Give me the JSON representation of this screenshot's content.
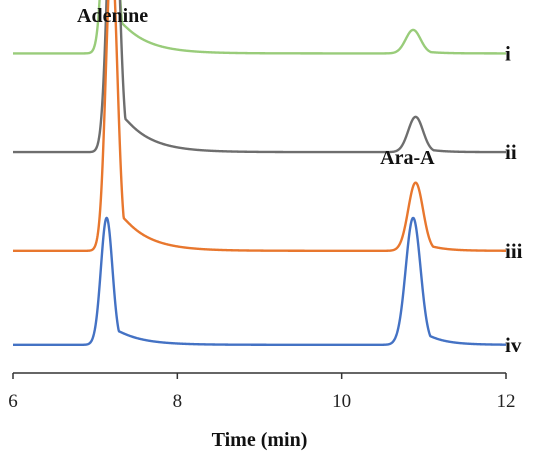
{
  "chart_data": {
    "type": "line",
    "title": "",
    "xlabel": "Time (min)",
    "ylabel": "",
    "xlim": [
      6,
      12
    ],
    "x_ticks": [
      6,
      8,
      10,
      12
    ],
    "grid": false,
    "annotations": [
      {
        "text": "Adenine",
        "x": 7.2
      },
      {
        "text": "Ara-A",
        "x": 10.8
      }
    ],
    "series": [
      {
        "name": "i",
        "color": "#99cc7a",
        "baseline": 0.68,
        "peaks": [
          {
            "rt": 7.18,
            "height": 0.58,
            "width": 0.07,
            "tail": 0.32
          },
          {
            "rt": 10.87,
            "height": 0.05,
            "width": 0.09,
            "tail": 0.18
          }
        ]
      },
      {
        "name": "ii",
        "color": "#6e6e6e",
        "baseline": 0.47,
        "peaks": [
          {
            "rt": 7.22,
            "height": 0.64,
            "width": 0.07,
            "tail": 0.32
          },
          {
            "rt": 10.9,
            "height": 0.075,
            "width": 0.09,
            "tail": 0.18
          }
        ]
      },
      {
        "name": "iii",
        "color": "#e8772e",
        "baseline": 0.26,
        "peaks": [
          {
            "rt": 7.2,
            "height": 0.63,
            "width": 0.07,
            "tail": 0.32
          },
          {
            "rt": 10.9,
            "height": 0.145,
            "width": 0.09,
            "tail": 0.2
          }
        ]
      },
      {
        "name": "iv",
        "color": "#4472c4",
        "baseline": 0.06,
        "peaks": [
          {
            "rt": 7.14,
            "height": 0.27,
            "width": 0.07,
            "tail": 0.3
          },
          {
            "rt": 10.87,
            "height": 0.27,
            "width": 0.09,
            "tail": 0.22
          }
        ]
      }
    ]
  }
}
